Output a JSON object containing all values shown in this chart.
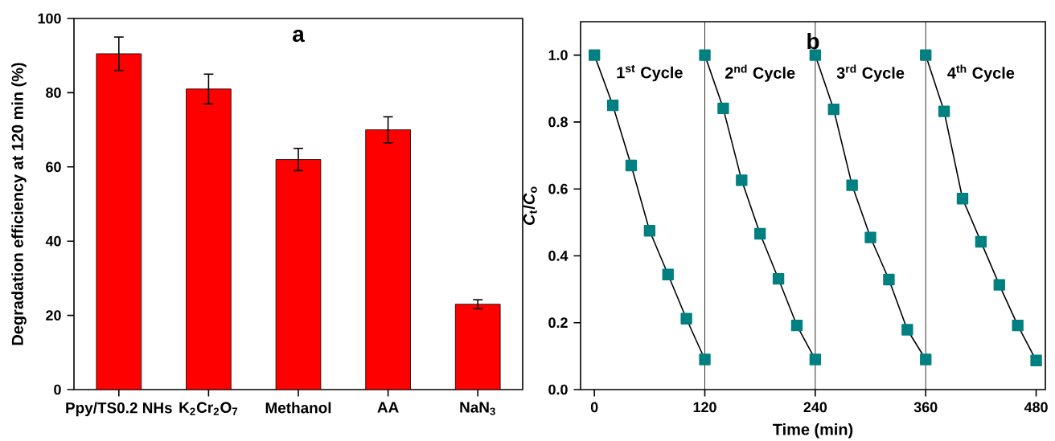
{
  "chart_data": [
    {
      "type": "bar",
      "title": "a",
      "ylabel": "Degradation efficiency at 120 min (%)",
      "categories": [
        "Ppy/TS0.2 NHs",
        "K$_{2}$Cr$_{2}$O$_{7}$",
        "Methanol",
        "AA",
        "NaN$_{3}$"
      ],
      "values": [
        90.5,
        81,
        62,
        70,
        23
      ],
      "errors": [
        4.5,
        4,
        3,
        3.5,
        1.2
      ],
      "color": "#ff0000",
      "ylim": [
        0,
        100
      ],
      "yticks": [
        0,
        20,
        40,
        60,
        80,
        100
      ],
      "grid": false
    },
    {
      "type": "line",
      "title": "b",
      "xlabel": "Time (min)",
      "ylabel": "*C*$_{t}$/*C*$_{o}$",
      "series": [
        {
          "color": "#008080",
          "x": [
            0,
            20,
            40,
            60,
            80,
            100,
            120
          ],
          "values": [
            1.0,
            0.85,
            0.67,
            0.475,
            0.344,
            0.212,
            0.09
          ]
        },
        {
          "color": "#008080",
          "x": [
            120,
            140,
            160,
            180,
            200,
            220,
            240
          ],
          "values": [
            1.0,
            0.841,
            0.626,
            0.466,
            0.331,
            0.192,
            0.09
          ]
        },
        {
          "color": "#008080",
          "x": [
            240,
            260,
            280,
            300,
            320,
            340,
            360
          ],
          "values": [
            1.0,
            0.838,
            0.611,
            0.455,
            0.329,
            0.179,
            0.09
          ]
        },
        {
          "color": "#008080",
          "x": [
            360,
            380,
            400,
            420,
            440,
            460,
            480
          ],
          "values": [
            1.0,
            0.832,
            0.571,
            0.442,
            0.313,
            0.192,
            0.087
          ]
        }
      ],
      "ref_lines": [
        {
          "axis": "x",
          "value": 120,
          "color": "#000000"
        },
        {
          "axis": "x",
          "value": 240,
          "color": "#000000"
        },
        {
          "axis": "x",
          "value": 360,
          "color": "#000000"
        }
      ],
      "annotations": [
        "1$^{st}$ Cycle",
        "2$^{nd}$ Cycle",
        "3$^{rd}$ Cycle",
        "4$^{th}$ Cycle"
      ],
      "marker": "square",
      "line_style": "solid",
      "xlim": [
        -15,
        490
      ],
      "xticks": [
        0,
        120,
        240,
        360,
        480
      ],
      "ylim": [
        0,
        1.1
      ],
      "yticks": [
        {
          "value": 0,
          "label": "0.0"
        },
        0.2,
        0.4,
        0.6,
        0.8,
        {
          "value": 1,
          "label": "1.0"
        }
      ],
      "grid": false
    }
  ]
}
